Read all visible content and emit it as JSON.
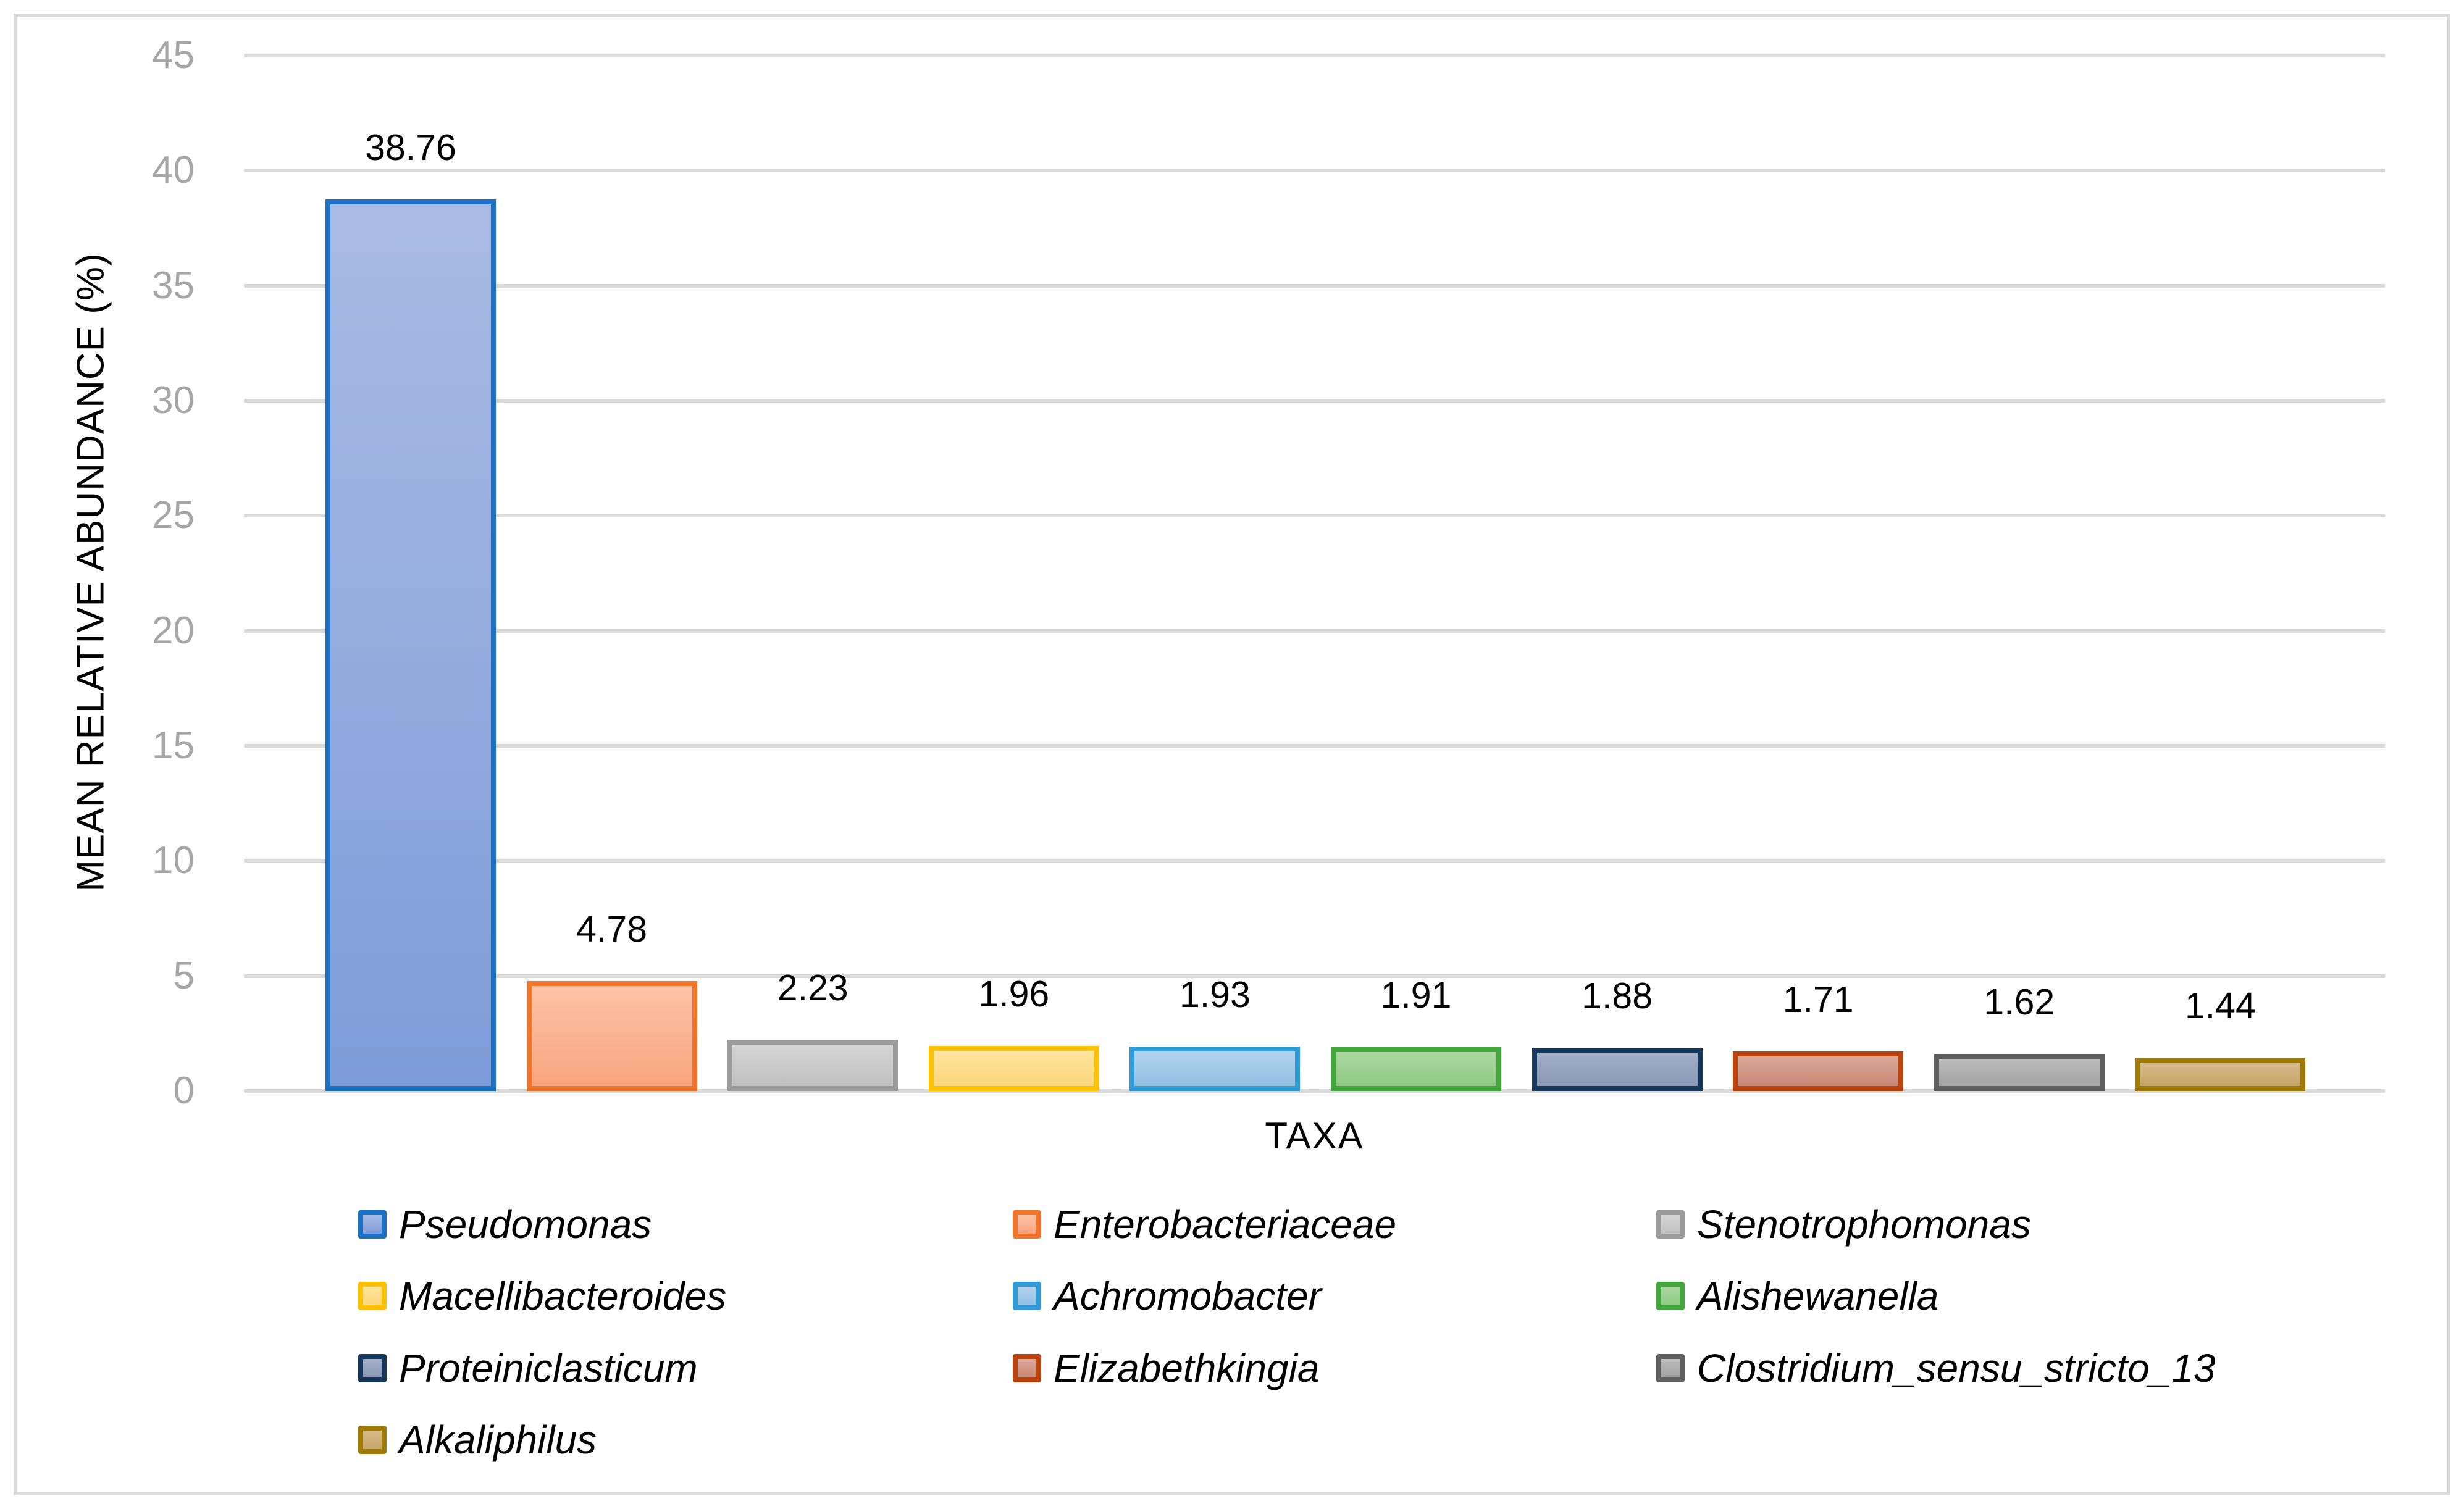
{
  "figure": {
    "background": "#FFFFFF",
    "border_color": "#D9D9D9"
  },
  "styles": {
    "grid_color": "#D9D9D9",
    "tick_label_color": "#A6A6A6",
    "text_color": "#000000"
  },
  "chart_data": {
    "type": "bar",
    "title": "",
    "xlabel": "TAXA",
    "ylabel": "MEAN RELATIVE ABUNDANCE (%)",
    "ylim": [
      0,
      45
    ],
    "yticks": [
      0,
      5,
      10,
      15,
      20,
      25,
      30,
      35,
      40,
      45
    ],
    "grid": "horizontal",
    "legend_position": "bottom",
    "legend_columns": 3,
    "categories": [
      "Pseudomonas",
      "Enterobacteriaceae",
      "Stenotrophomonas",
      "Macellibacteroides",
      "Achromobacter",
      "Alishewanella",
      "Proteiniclasticum",
      "Elizabethkingia",
      "Clostridium_sensu_stricto_13",
      "Alkaliphilus"
    ],
    "values": [
      38.76,
      4.78,
      2.23,
      1.96,
      1.93,
      1.91,
      1.88,
      1.71,
      1.62,
      1.44
    ],
    "value_labels": [
      "38.76",
      "4.78",
      "2.23",
      "1.96",
      "1.93",
      "1.91",
      "1.88",
      "1.71",
      "1.62",
      "1.44"
    ],
    "colors": [
      {
        "border": "#1B6FC5",
        "fill": "#A9BBE5",
        "fill2": "#7E9CD8"
      },
      {
        "border": "#F0752A",
        "fill": "#FCC3A6",
        "fill2": "#FAA57F"
      },
      {
        "border": "#9B9B9B",
        "fill": "#D6D6D6",
        "fill2": "#C0C0C0"
      },
      {
        "border": "#FFC000",
        "fill": "#FEE59E",
        "fill2": "#FCD67A"
      },
      {
        "border": "#2F9CD8",
        "fill": "#B3D2EE",
        "fill2": "#92C0E4"
      },
      {
        "border": "#43A83C",
        "fill": "#ACD8A2",
        "fill2": "#8FC983"
      },
      {
        "border": "#16365C",
        "fill": "#A3AFC8",
        "fill2": "#8A98B6"
      },
      {
        "border": "#BB430E",
        "fill": "#D9A89A",
        "fill2": "#CA8875"
      },
      {
        "border": "#5F5F5F",
        "fill": "#BDBDBD",
        "fill2": "#A2A2A2"
      },
      {
        "border": "#9E7A06",
        "fill": "#D7BB88",
        "fill2": "#C6A569"
      }
    ]
  }
}
